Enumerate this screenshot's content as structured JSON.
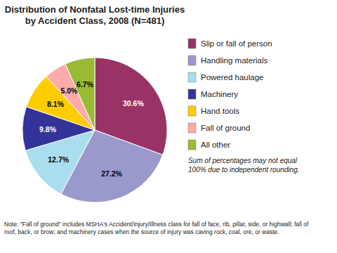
{
  "chart_data": {
    "type": "pie",
    "title": "Distribution of Nonfatal Lost-time Injuries\nby Accident Class, 2008 (N=481)",
    "categories": [
      "Slip or fall of person",
      "Handling materials",
      "Powered haulage",
      "Machinery",
      "Hand tools",
      "Fall of ground",
      "All other"
    ],
    "values": [
      30.6,
      27.2,
      12.7,
      9.8,
      8.1,
      5.0,
      6.7
    ],
    "value_labels": [
      "30.6%",
      "27.2%",
      "12.7%",
      "9.8%",
      "8.1%",
      "5.0%",
      "6.7%"
    ],
    "colors": [
      "#993366",
      "#9999cc",
      "#aaddee",
      "#333399",
      "#ffcc00",
      "#ffaaaa",
      "#99bb33"
    ],
    "data_labels": true,
    "legend": "right",
    "annotations": [
      "Sum of percentages may not equal\n100% due to independent rounding.",
      "Note: \"Fall of ground\" includes MSHA's Accident/Injury/Illness class for fall of face, rib, pillar, side, or highwall; fall of\nroof, back, or brow; and machinery cases when the source of injury was caving rock, coal, ore, or waste."
    ]
  }
}
